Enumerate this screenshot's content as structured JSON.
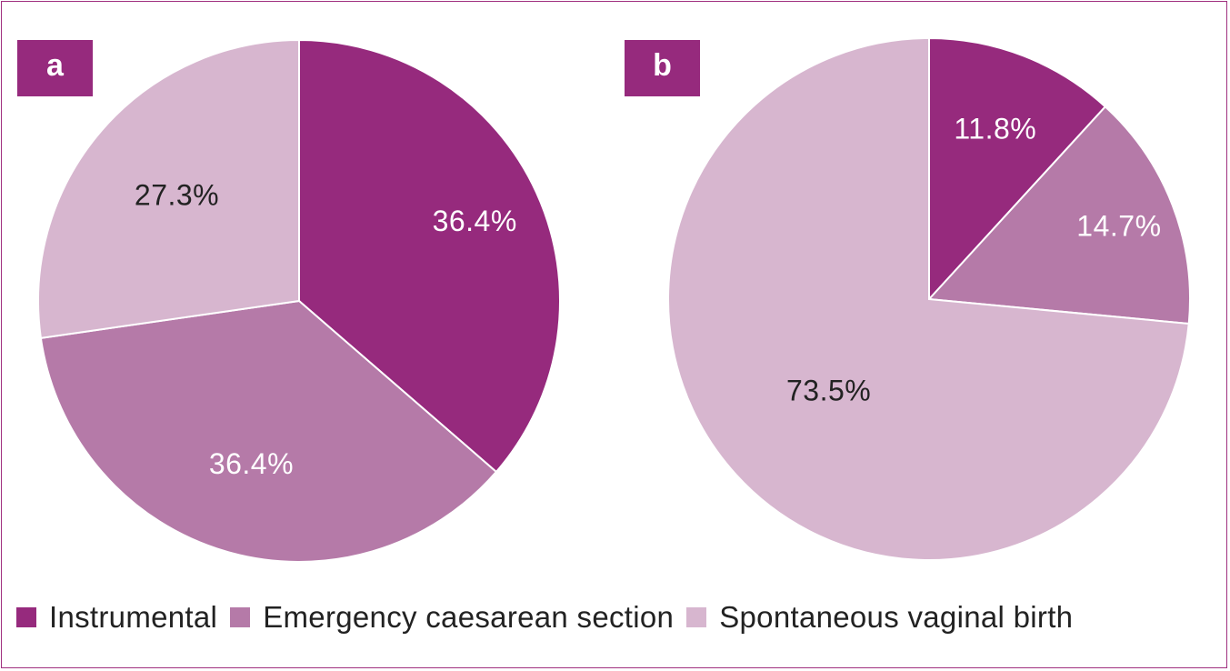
{
  "colors": {
    "instrumental": "#962a7d",
    "emergency": "#b57aa8",
    "spontaneous": "#d7b6cf",
    "border": "#a0307f"
  },
  "legend": {
    "items": [
      {
        "label": "Instrumental",
        "color": "#962a7d"
      },
      {
        "label": "Emergency caesarean section",
        "color": "#b57aa8"
      },
      {
        "label": "Spontaneous vaginal birth",
        "color": "#d7b6cf"
      }
    ]
  },
  "chart_data": [
    {
      "type": "pie",
      "panel": "a",
      "title": "",
      "slices": [
        {
          "category": "Instrumental",
          "value": 36.4,
          "label": "36.4%",
          "color": "#962a7d",
          "label_color": "#ffffff"
        },
        {
          "category": "Emergency caesarean section",
          "value": 36.4,
          "label": "36.4%",
          "color": "#b57aa8",
          "label_color": "#ffffff"
        },
        {
          "category": "Spontaneous vaginal birth",
          "value": 27.3,
          "label": "27.3%",
          "color": "#d7b6cf",
          "label_color": "#222222"
        }
      ],
      "start_angle": "12 o'clock",
      "direction": "clockwise"
    },
    {
      "type": "pie",
      "panel": "b",
      "title": "",
      "slices": [
        {
          "category": "Instrumental",
          "value": 11.8,
          "label": "11.8%",
          "color": "#962a7d",
          "label_color": "#ffffff"
        },
        {
          "category": "Emergency caesarean section",
          "value": 14.7,
          "label": "14.7%",
          "color": "#b57aa8",
          "label_color": "#ffffff"
        },
        {
          "category": "Spontaneous vaginal birth",
          "value": 73.5,
          "label": "73.5%",
          "color": "#d7b6cf",
          "label_color": "#222222"
        }
      ],
      "start_angle": "12 o'clock",
      "direction": "clockwise"
    }
  ]
}
